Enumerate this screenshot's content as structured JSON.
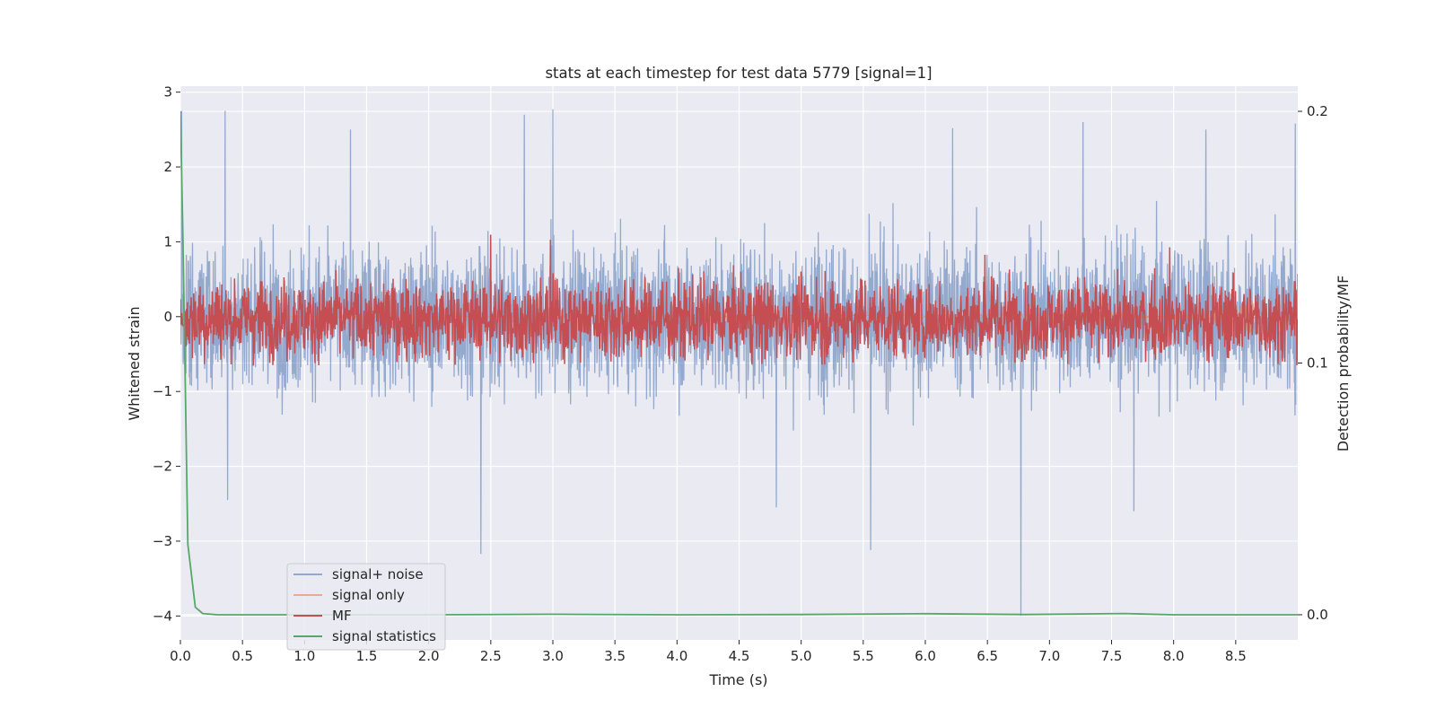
{
  "chart_data": {
    "type": "line",
    "title": "stats at each timestep for test data 5779 [signal=1]",
    "xlabel": "Time (s)",
    "ylabel": "Whitened strain",
    "ylabel_right": "Detection probability/MF",
    "xlim": [
      0.0,
      9.0
    ],
    "ylim": [
      -4.32,
      3.08
    ],
    "ylim_right": [
      -0.01,
      0.21
    ],
    "x_ticks": [
      "0.0",
      "0.5",
      "1.0",
      "1.5",
      "2.0",
      "2.5",
      "3.0",
      "3.5",
      "4.0",
      "4.5",
      "5.0",
      "5.5",
      "6.0",
      "6.5",
      "7.0",
      "7.5",
      "8.0",
      "8.5"
    ],
    "y_ticks": [
      "3",
      "2",
      "1",
      "0",
      "−1",
      "−2",
      "−3",
      "−4"
    ],
    "y_ticks_right": [
      "0.2",
      "0.1",
      "0.0"
    ],
    "grid": true,
    "legend_position": "lower-left",
    "series": [
      {
        "name": "signal+ noise",
        "color": "#4c72b0",
        "envelope_note": "dense noise roughly between -1.3 and 1.3",
        "peaks": [
          {
            "x": 0.01,
            "y": 2.75
          },
          {
            "x": 0.36,
            "y": 2.75
          },
          {
            "x": 1.37,
            "y": 2.5
          },
          {
            "x": 2.77,
            "y": 2.7
          },
          {
            "x": 3.0,
            "y": 2.77
          },
          {
            "x": 6.22,
            "y": 2.52
          },
          {
            "x": 7.27,
            "y": 2.6
          },
          {
            "x": 8.26,
            "y": 2.5
          },
          {
            "x": 2.42,
            "y": -3.17
          },
          {
            "x": 5.56,
            "y": -3.12
          },
          {
            "x": 6.77,
            "y": -4.0
          },
          {
            "x": 0.38,
            "y": -2.45
          },
          {
            "x": 4.8,
            "y": -2.55
          },
          {
            "x": 7.68,
            "y": -2.6
          },
          {
            "x": 8.98,
            "y": 2.58
          }
        ]
      },
      {
        "name": "signal only",
        "color": "#dd8452",
        "note": "near zero, chirp growing toward 8.65 s",
        "points": [
          {
            "x": 0.0,
            "y": 0.0
          },
          {
            "x": 6.0,
            "y": 0.02
          },
          {
            "x": 7.5,
            "y": 0.05
          },
          {
            "x": 8.2,
            "y": -0.05
          },
          {
            "x": 8.5,
            "y": -0.12
          },
          {
            "x": 8.65,
            "y": -0.25
          },
          {
            "x": 8.66,
            "y": 0.0
          }
        ]
      },
      {
        "name": "MF",
        "color": "#c44e52",
        "axis": "right",
        "note": "noisy band between ~0.1 and ~0.135 on right axis",
        "band_right": [
          0.1,
          0.135
        ],
        "peaks_right": [
          {
            "x": 2.5,
            "y": 0.151
          },
          {
            "x": 2.98,
            "y": 0.149
          },
          {
            "x": 6.48,
            "y": 0.143
          },
          {
            "x": 7.97,
            "y": 0.146
          }
        ]
      },
      {
        "name": "signal statistics",
        "color": "#55a868",
        "axis": "right",
        "points": [
          {
            "x": 0.0,
            "y": 0.2
          },
          {
            "x": 0.02,
            "y": 0.15
          },
          {
            "x": 0.06,
            "y": 0.028
          },
          {
            "x": 0.12,
            "y": 0.003
          },
          {
            "x": 0.18,
            "y": 0.0005
          },
          {
            "x": 0.3,
            "y": 0.0
          },
          {
            "x": 2.0,
            "y": 0.0
          },
          {
            "x": 3.0,
            "y": 0.0002
          },
          {
            "x": 4.0,
            "y": 0.0
          },
          {
            "x": 5.0,
            "y": 0.0001
          },
          {
            "x": 6.0,
            "y": 0.0004
          },
          {
            "x": 6.8,
            "y": 0.0001
          },
          {
            "x": 7.6,
            "y": 0.0005
          },
          {
            "x": 8.0,
            "y": 0.0
          },
          {
            "x": 9.0,
            "y": 0.0
          }
        ]
      }
    ]
  }
}
